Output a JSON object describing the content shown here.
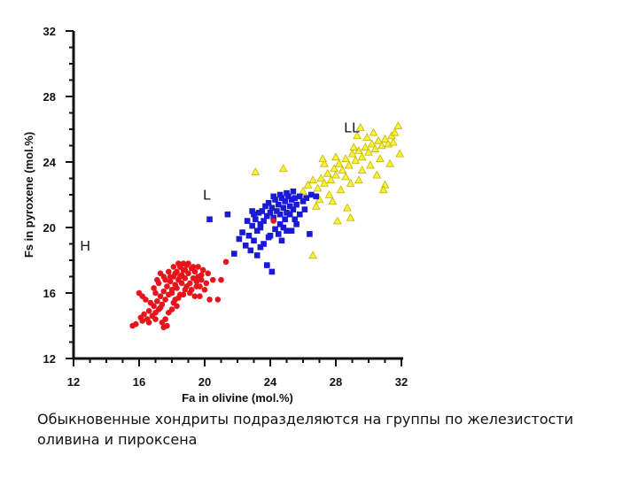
{
  "chart_data": {
    "type": "scatter",
    "xlabel": "Fa in olivine (mol.%)",
    "ylabel": "Fs in pyroxene (mol.%)",
    "xlim": [
      12,
      32
    ],
    "ylim": [
      12,
      32
    ],
    "x_ticks": [
      12,
      16,
      20,
      24,
      28,
      32
    ],
    "y_ticks": [
      12,
      16,
      20,
      24,
      28,
      32
    ],
    "grid": false,
    "annotations": [
      {
        "text": "H",
        "x": 12.4,
        "y": 18.6
      },
      {
        "text": "L",
        "x": 19.9,
        "y": 21.7
      },
      {
        "text": "LL",
        "x": 28.5,
        "y": 25.8
      }
    ],
    "series": [
      {
        "marker": "circle",
        "color": "#e8141c",
        "points": [
          [
            15.8,
            14.1
          ],
          [
            16.2,
            14.3
          ],
          [
            16.3,
            14.7
          ],
          [
            16.5,
            14.4
          ],
          [
            16.6,
            14.9
          ],
          [
            16.8,
            14.6
          ],
          [
            16.9,
            15.2
          ],
          [
            17.0,
            14.8
          ],
          [
            17.1,
            15.5
          ],
          [
            17.2,
            15.0
          ],
          [
            17.3,
            15.8
          ],
          [
            17.4,
            15.3
          ],
          [
            17.5,
            16.1
          ],
          [
            17.6,
            15.6
          ],
          [
            17.7,
            16.4
          ],
          [
            17.8,
            15.9
          ],
          [
            17.9,
            16.7
          ],
          [
            18.0,
            16.2
          ],
          [
            18.1,
            17.0
          ],
          [
            18.2,
            16.5
          ],
          [
            18.3,
            17.3
          ],
          [
            18.4,
            16.8
          ],
          [
            18.5,
            17.6
          ],
          [
            18.6,
            17.1
          ],
          [
            18.7,
            17.4
          ],
          [
            18.8,
            16.9
          ],
          [
            18.9,
            17.7
          ],
          [
            19.0,
            17.2
          ],
          [
            19.1,
            16.6
          ],
          [
            19.2,
            17.5
          ],
          [
            19.3,
            16.9
          ],
          [
            19.4,
            17.3
          ],
          [
            19.5,
            16.7
          ],
          [
            19.6,
            17.0
          ],
          [
            19.7,
            16.4
          ],
          [
            19.8,
            16.8
          ],
          [
            17.0,
            16.0
          ],
          [
            16.4,
            15.6
          ],
          [
            16.0,
            16.0
          ],
          [
            16.2,
            15.8
          ],
          [
            17.2,
            16.6
          ],
          [
            17.5,
            17.0
          ],
          [
            17.8,
            17.3
          ],
          [
            18.1,
            17.6
          ],
          [
            18.4,
            17.8
          ],
          [
            18.7,
            17.8
          ],
          [
            19.0,
            17.8
          ],
          [
            19.3,
            17.6
          ],
          [
            19.6,
            17.6
          ],
          [
            19.9,
            17.4
          ],
          [
            18.2,
            15.6
          ],
          [
            18.5,
            15.9
          ],
          [
            18.8,
            16.2
          ],
          [
            19.1,
            16.0
          ],
          [
            19.4,
            15.8
          ],
          [
            19.7,
            15.8
          ],
          [
            20.0,
            16.2
          ],
          [
            20.1,
            16.6
          ],
          [
            20.3,
            15.6
          ],
          [
            20.5,
            16.8
          ],
          [
            17.6,
            14.4
          ],
          [
            17.8,
            14.8
          ],
          [
            18.0,
            15.0
          ],
          [
            18.3,
            15.2
          ],
          [
            17.4,
            14.2
          ],
          [
            17.5,
            13.9
          ],
          [
            17.7,
            14.0
          ],
          [
            16.7,
            15.4
          ],
          [
            16.9,
            16.3
          ],
          [
            17.1,
            16.8
          ],
          [
            17.3,
            17.2
          ],
          [
            17.6,
            16.8
          ],
          [
            17.9,
            17.0
          ],
          [
            18.2,
            17.2
          ],
          [
            18.5,
            17.0
          ],
          [
            18.8,
            17.4
          ],
          [
            18.0,
            16.0
          ],
          [
            18.3,
            16.3
          ],
          [
            18.6,
            16.6
          ],
          [
            18.9,
            16.4
          ],
          [
            19.2,
            16.2
          ],
          [
            19.5,
            16.4
          ],
          [
            18.1,
            15.4
          ],
          [
            18.4,
            15.7
          ],
          [
            18.7,
            15.9
          ],
          [
            17.3,
            15.1
          ],
          [
            17.0,
            14.4
          ],
          [
            16.6,
            14.2
          ],
          [
            16.1,
            14.5
          ],
          [
            15.6,
            14.0
          ],
          [
            20.8,
            15.6
          ],
          [
            21.0,
            16.8
          ],
          [
            20.2,
            17.2
          ],
          [
            19.8,
            17.1
          ],
          [
            21.3,
            17.9
          ],
          [
            24.2,
            20.4
          ]
        ]
      },
      {
        "marker": "square",
        "color": "#1a1ad6",
        "points": [
          [
            20.3,
            20.5
          ],
          [
            21.4,
            20.8
          ],
          [
            21.8,
            18.4
          ],
          [
            22.1,
            19.3
          ],
          [
            22.3,
            19.7
          ],
          [
            22.5,
            18.9
          ],
          [
            22.7,
            19.5
          ],
          [
            22.9,
            20.1
          ],
          [
            23.0,
            19.2
          ],
          [
            23.1,
            20.5
          ],
          [
            23.2,
            19.8
          ],
          [
            23.3,
            20.9
          ],
          [
            23.4,
            20.2
          ],
          [
            23.5,
            21.0
          ],
          [
            23.6,
            20.4
          ],
          [
            23.7,
            21.3
          ],
          [
            23.8,
            20.7
          ],
          [
            23.9,
            21.5
          ],
          [
            24.0,
            20.9
          ],
          [
            24.1,
            21.2
          ],
          [
            24.2,
            20.6
          ],
          [
            24.3,
            21.7
          ],
          [
            24.4,
            21.0
          ],
          [
            24.5,
            21.4
          ],
          [
            24.6,
            20.8
          ],
          [
            24.7,
            21.8
          ],
          [
            24.8,
            21.2
          ],
          [
            24.9,
            21.6
          ],
          [
            25.0,
            20.9
          ],
          [
            25.1,
            21.9
          ],
          [
            25.2,
            21.3
          ],
          [
            25.3,
            21.7
          ],
          [
            25.4,
            21.1
          ],
          [
            25.5,
            21.8
          ],
          [
            25.6,
            21.4
          ],
          [
            25.8,
            21.9
          ],
          [
            26.0,
            21.6
          ],
          [
            26.2,
            21.8
          ],
          [
            26.5,
            22.0
          ],
          [
            26.8,
            21.9
          ],
          [
            24.0,
            19.5
          ],
          [
            24.3,
            19.9
          ],
          [
            24.6,
            20.2
          ],
          [
            24.9,
            20.5
          ],
          [
            25.2,
            20.8
          ],
          [
            23.6,
            19.0
          ],
          [
            23.9,
            19.4
          ],
          [
            22.8,
            18.6
          ],
          [
            23.4,
            18.8
          ],
          [
            24.5,
            19.6
          ],
          [
            25.5,
            20.5
          ],
          [
            25.8,
            20.8
          ],
          [
            25.0,
            19.8
          ],
          [
            24.7,
            19.2
          ],
          [
            23.2,
            18.3
          ],
          [
            23.8,
            17.7
          ],
          [
            24.1,
            17.3
          ],
          [
            26.4,
            19.6
          ],
          [
            25.3,
            19.8
          ],
          [
            22.6,
            20.4
          ],
          [
            23.0,
            20.8
          ],
          [
            24.2,
            21.9
          ],
          [
            24.6,
            22.0
          ],
          [
            25.0,
            22.1
          ],
          [
            25.4,
            22.2
          ],
          [
            22.9,
            21.0
          ],
          [
            23.4,
            20.0
          ],
          [
            24.8,
            20.0
          ],
          [
            25.6,
            20.2
          ],
          [
            26.1,
            21.1
          ]
        ]
      },
      {
        "marker": "triangle",
        "color": "#f5f23a",
        "stroke": "#c8b400",
        "points": [
          [
            23.1,
            23.4
          ],
          [
            24.8,
            23.6
          ],
          [
            26.0,
            22.2
          ],
          [
            26.3,
            22.6
          ],
          [
            26.6,
            22.9
          ],
          [
            26.9,
            22.4
          ],
          [
            27.1,
            23.0
          ],
          [
            27.3,
            22.7
          ],
          [
            27.5,
            23.3
          ],
          [
            27.7,
            22.9
          ],
          [
            27.9,
            23.6
          ],
          [
            28.0,
            23.2
          ],
          [
            28.2,
            23.9
          ],
          [
            28.4,
            23.5
          ],
          [
            28.6,
            24.2
          ],
          [
            28.8,
            23.8
          ],
          [
            29.0,
            24.5
          ],
          [
            29.2,
            24.1
          ],
          [
            29.4,
            24.7
          ],
          [
            29.6,
            24.3
          ],
          [
            29.8,
            24.9
          ],
          [
            30.0,
            24.6
          ],
          [
            30.2,
            25.1
          ],
          [
            30.4,
            24.8
          ],
          [
            30.6,
            25.3
          ],
          [
            30.8,
            25.0
          ],
          [
            31.0,
            25.4
          ],
          [
            31.2,
            25.1
          ],
          [
            31.4,
            25.6
          ],
          [
            31.6,
            25.8
          ],
          [
            31.8,
            26.2
          ],
          [
            31.5,
            25.2
          ],
          [
            31.9,
            24.5
          ],
          [
            30.3,
            25.8
          ],
          [
            29.9,
            25.5
          ],
          [
            29.1,
            24.9
          ],
          [
            28.6,
            23.1
          ],
          [
            28.9,
            22.7
          ],
          [
            29.6,
            23.5
          ],
          [
            30.1,
            23.8
          ],
          [
            30.5,
            23.2
          ],
          [
            31.0,
            22.6
          ],
          [
            31.3,
            23.9
          ],
          [
            28.3,
            22.3
          ],
          [
            27.6,
            22.0
          ],
          [
            27.0,
            21.7
          ],
          [
            26.8,
            21.3
          ],
          [
            28.7,
            21.2
          ],
          [
            28.1,
            20.4
          ],
          [
            28.9,
            20.6
          ],
          [
            26.6,
            18.3
          ],
          [
            27.3,
            23.9
          ],
          [
            29.3,
            25.6
          ],
          [
            28.0,
            24.3
          ],
          [
            27.2,
            24.2
          ],
          [
            29.5,
            26.1
          ],
          [
            30.7,
            24.2
          ],
          [
            29.4,
            22.9
          ],
          [
            30.9,
            22.3
          ],
          [
            27.8,
            21.6
          ]
        ]
      }
    ]
  },
  "caption": {
    "line1": "Обыкновенные хондриты подразделяются на группы по железистости",
    "line2": "оливина и пироксена"
  }
}
